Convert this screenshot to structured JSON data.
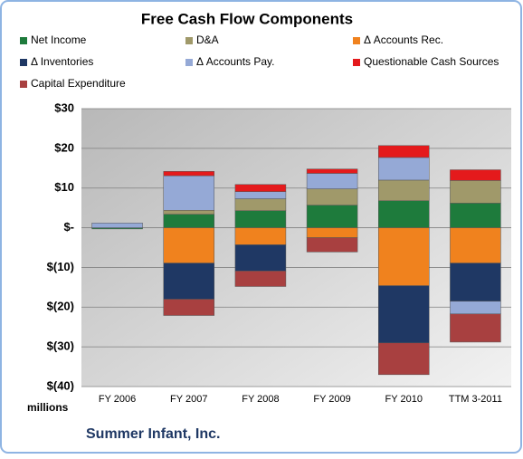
{
  "chart_data": {
    "type": "stacked_bar",
    "title": "Free Cash Flow Components",
    "categories": [
      "FY 2006",
      "FY 2007",
      "FY 2008",
      "FY 2009",
      "FY 2010",
      "TTM 3-2011"
    ],
    "series": [
      {
        "name": "Net Income",
        "color": "#1e7b3c",
        "values": [
          -0.3,
          3.4,
          4.3,
          5.7,
          6.8,
          6.2
        ]
      },
      {
        "name": "D&A",
        "color": "#a0996a",
        "values": [
          0,
          1,
          3,
          4.1,
          5.2,
          5.7
        ]
      },
      {
        "name": "Δ Accounts Rec.",
        "color": "#f0821e",
        "values": [
          0,
          -8.9,
          -4.3,
          -2.5,
          -14.6,
          -8.9
        ]
      },
      {
        "name": "Δ Inventories",
        "color": "#1f3864",
        "values": [
          0,
          -9.1,
          -6.6,
          0,
          -14.4,
          -9.6
        ]
      },
      {
        "name": "Δ Accounts Pay.",
        "color": "#95a9d6",
        "values": [
          1.2,
          8.7,
          1.8,
          3.9,
          5.7,
          -3.2
        ]
      },
      {
        "name": "Questionable Cash Sources",
        "color": "#e41a1c",
        "values": [
          0,
          1.1,
          1.8,
          1.1,
          3,
          2.7
        ]
      },
      {
        "name": "Capital Expenditure",
        "color": "#a84040",
        "values": [
          0,
          -4.1,
          -3.9,
          -3.6,
          -8,
          -7.1
        ]
      }
    ],
    "ylim": [
      -40,
      30
    ],
    "yticks": [
      {
        "value": -40,
        "label": "$(40)"
      },
      {
        "value": -30,
        "label": "$(30)"
      },
      {
        "value": -20,
        "label": "$(20)"
      },
      {
        "value": -10,
        "label": "$(10)"
      },
      {
        "value": 0,
        "label": "$-"
      },
      {
        "value": 10,
        "label": "$10"
      },
      {
        "value": 20,
        "label": "$20"
      },
      {
        "value": 30,
        "label": "$30"
      }
    ],
    "y_axis_label": "millions",
    "footer": "Summer Infant, Inc.",
    "grid": true
  }
}
